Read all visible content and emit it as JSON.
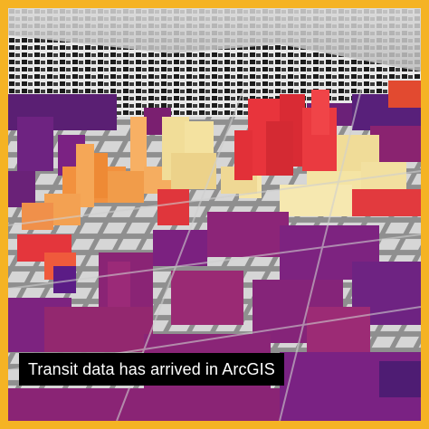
{
  "caption": {
    "text": "Transit data has arrived in ArcGIS"
  },
  "colors": {
    "frame": "#f5b324",
    "caption_bg": "#000000",
    "caption_text": "#ffffff",
    "ground": "#e8e8e8",
    "road": "#9a9a9a",
    "dark_purple": "#4a1c6b",
    "purple": "#7b2283",
    "magenta": "#a4246f",
    "red": "#e2343a",
    "orange": "#f08a3a",
    "light_orange": "#f6b96a",
    "pale_yellow": "#f3e3a2"
  }
}
